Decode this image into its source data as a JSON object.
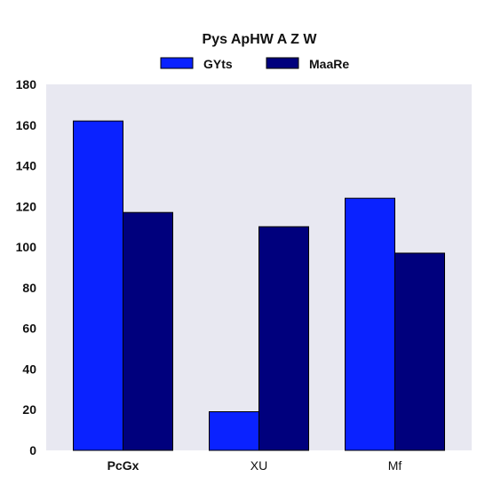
{
  "chart_data": {
    "type": "bar",
    "title": "Pys ApHW A Z W",
    "xlabel": "",
    "ylabel": "",
    "categories": [
      "PcGx",
      "XU",
      "Mf"
    ],
    "bold_categories": [
      "PcGx"
    ],
    "series": [
      {
        "name": "GYts",
        "values": [
          162,
          19,
          124
        ],
        "color": "#0a22ff"
      },
      {
        "name": "MaaRe",
        "values": [
          117,
          110,
          97
        ],
        "color": "#00007d"
      }
    ],
    "ylim": [
      0,
      180
    ],
    "yticks": [
      0,
      20,
      40,
      60,
      80,
      100,
      120,
      140,
      160,
      180
    ],
    "grid": false,
    "legend_position": "top-center",
    "plot_background": "#e8e8f1"
  }
}
